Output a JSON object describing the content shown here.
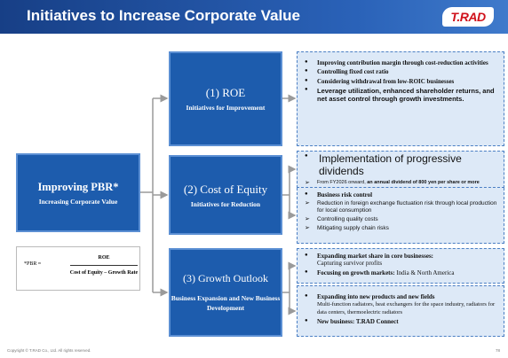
{
  "header": {
    "title": "Initiatives to Increase Corporate Value",
    "logo": "T.RAD"
  },
  "main": {
    "title": "Improving PBR*",
    "subtitle": "Increasing Corporate Value"
  },
  "formula": {
    "label": "*PBR ≈",
    "numerator": "ROE",
    "denominator": "Cost of Equity – Growth Rate"
  },
  "initiatives": [
    {
      "title": "(1) ROE",
      "subtitle": "Initiatives for Improvement"
    },
    {
      "title": "(2) Cost of Equity",
      "subtitle": "Initiatives for Reduction"
    },
    {
      "title": "(3) Growth Outlook",
      "subtitle": "Business Expansion and New Business Development"
    }
  ],
  "details": [
    {
      "items": [
        "Improving contribution margin through cost-reduction activities",
        "Controlling fixed cost ratio",
        "Considering withdrawal from low-ROIC businesses",
        "Leverage utilization, enhanced shareholder returns, and net asset control through growth investments."
      ]
    },
    {
      "heading": "Implementation of progressive dividends",
      "note": "From FY2026 onward, ",
      "note_bold": "an annual dividend of 800 yen per share or more"
    },
    {
      "heading": "Business risk control",
      "items": [
        "Reduction in foreign exchange fluctuation risk through local production for local consumption",
        "Controlling quality costs",
        "Mitigating supply chain risks"
      ]
    },
    {
      "items": [
        {
          "bold": "Expanding market share in core businesses:",
          "text": "Capturing survivor profits"
        },
        {
          "bold": "Focusing on growth markets:",
          "text": "India & North America"
        }
      ]
    },
    {
      "items": [
        {
          "bold": "Expanding into new products and new fields",
          "text": "Multi-function radiators, heat exchangers for the space industry, radiators for data centers, thermoelectric radiators"
        },
        {
          "bold": "New business: T.RAD Connect"
        }
      ]
    }
  ],
  "footer": {
    "copyright": "Copyright © T.RAD Co., Ltd. All rights reserved.",
    "page": "78"
  }
}
